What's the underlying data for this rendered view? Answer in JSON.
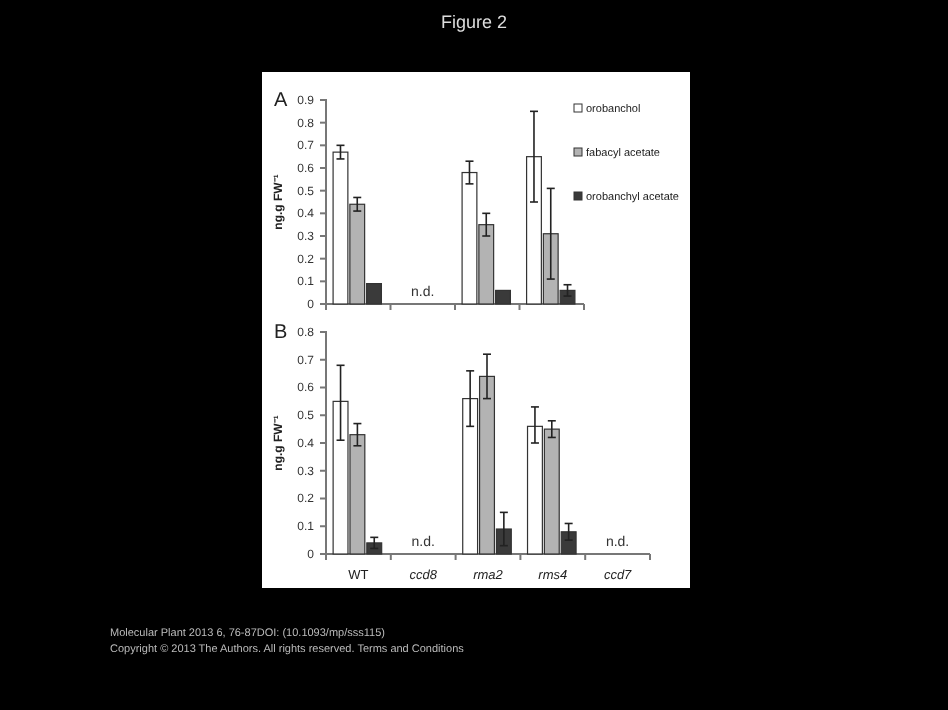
{
  "chart_data": [
    {
      "type": "bar",
      "title": "Figure 2",
      "subtitle": "A",
      "ylabel": "ng.g FW⁻¹",
      "categories": [
        null,
        null,
        null,
        null
      ],
      "tick_labels": "y",
      "ylim": [
        0,
        0.9
      ],
      "yticks": [
        0,
        0.1,
        0.2,
        0.3,
        0.4,
        0.5,
        0.6,
        0.7,
        0.8,
        0.9
      ],
      "legend": "top right",
      "grid": false,
      "series": [
        {
          "name": "orobanchol",
          "color": "#ffffff",
          "values": [
            0.67,
            null,
            0.58,
            0.65
          ],
          "errors": [
            0.03,
            null,
            0.05,
            [
              0.45,
              0.85
            ]
          ]
        },
        {
          "name": "fabacyl acetate",
          "color": "#b3b3b3",
          "values": [
            0.44,
            null,
            0.35,
            0.31
          ],
          "errors": [
            0.03,
            null,
            0.05,
            [
              0.11,
              0.51
            ]
          ]
        },
        {
          "name": "orobanchyl acetate",
          "color": "#3a3a3a",
          "values": [
            0.09,
            null,
            0.06,
            0.06
          ],
          "errors": [
            null,
            null,
            null,
            0.025
          ]
        }
      ],
      "annotations": [
        "n.d."
      ]
    },
    {
      "type": "bar",
      "subtitle": "B",
      "ylabel": "ng.g FW⁻¹",
      "categories": [
        "WT",
        "ccd8",
        "rma2",
        "rms4",
        "ccd7"
      ],
      "ylim": [
        0,
        0.8
      ],
      "yticks": [
        0,
        0.1,
        0.2,
        0.3,
        0.4,
        0.5,
        0.6,
        0.7,
        0.8
      ],
      "legend": false,
      "grid": false,
      "series": [
        {
          "color": "#ffffff",
          "values": [
            0.55,
            null,
            0.56,
            0.46,
            null
          ],
          "errors": [
            [
              0.41,
              0.68
            ],
            null,
            [
              0.46,
              0.66
            ],
            [
              0.4,
              0.53
            ],
            null
          ]
        },
        {
          "color": "#b3b3b3",
          "values": [
            0.43,
            null,
            0.64,
            0.45,
            null
          ],
          "errors": [
            [
              0.39,
              0.47
            ],
            null,
            [
              0.56,
              0.72
            ],
            [
              0.42,
              0.48
            ],
            null
          ]
        },
        {
          "color": "#3a3a3a",
          "values": [
            0.04,
            null,
            0.09,
            0.08,
            null
          ],
          "errors": [
            [
              0.02,
              0.06
            ],
            null,
            [
              0.03,
              0.15
            ],
            [
              0.05,
              0.11
            ],
            null
          ]
        }
      ],
      "annotations": [
        "n.d.",
        "n.d.",
        "Molecular Plant 2013 6, 76-87DOI: (10.1093/mp/sss115)",
        "Copyright © 2013 The Authors. All rights reserved. Terms and Conditions"
      ]
    }
  ]
}
